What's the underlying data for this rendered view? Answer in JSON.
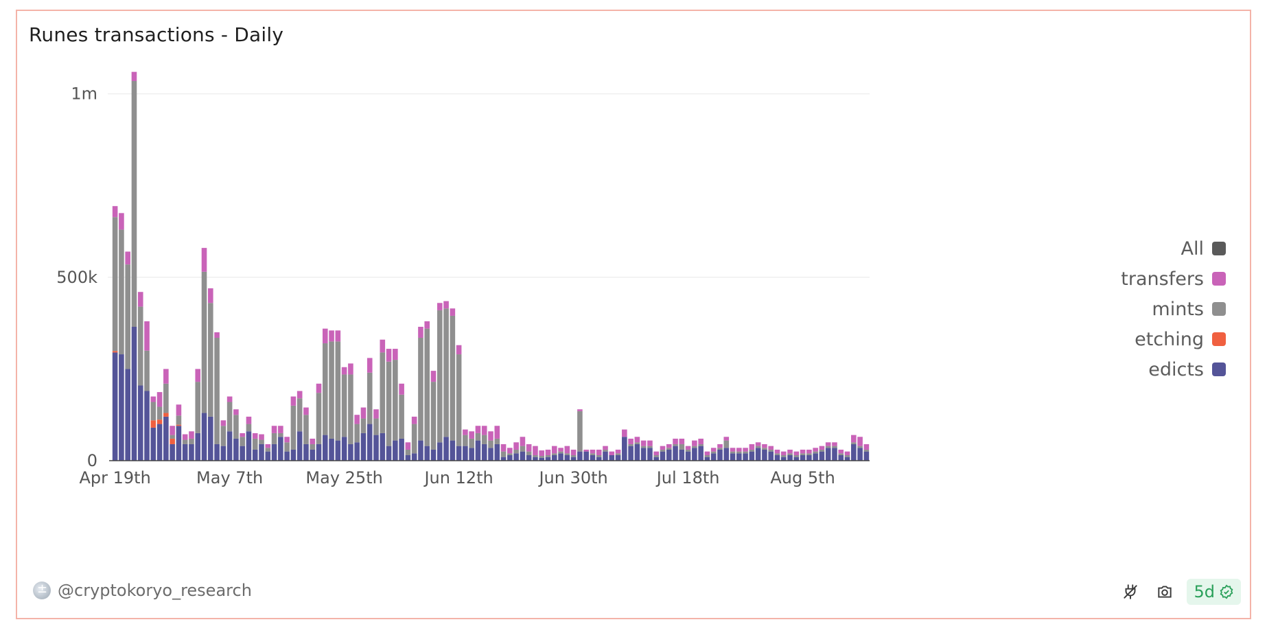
{
  "title": "Runes transactions - Daily",
  "author": "@cryptokoryo_research",
  "badge": {
    "label": "5d"
  },
  "colors": {
    "edicts": "#545498",
    "etching": "#f06040",
    "mints": "#8f8f8f",
    "transfers": "#c963b8",
    "all": "#5a5a5a"
  },
  "legend": [
    {
      "label": "All",
      "color": "#5a5a5a"
    },
    {
      "label": "transfers",
      "color": "#c963b8"
    },
    {
      "label": "mints",
      "color": "#8f8f8f"
    },
    {
      "label": "etching",
      "color": "#f06040"
    },
    {
      "label": "edicts",
      "color": "#545498"
    }
  ],
  "chart_data": {
    "type": "bar",
    "stacked": true,
    "title": "Runes transactions - Daily",
    "xlabel": "",
    "ylabel": "",
    "ylim": [
      0,
      1050000
    ],
    "yticks": [
      0,
      500000,
      1000000
    ],
    "ytick_labels": [
      "0",
      "500k",
      "1m"
    ],
    "xtick_labels": [
      "Apr 19th",
      "May 7th",
      "May 25th",
      "Jun 12th",
      "Jun 30th",
      "Jul 18th",
      "Aug 5th"
    ],
    "xtick_day_index": [
      0,
      18,
      36,
      54,
      72,
      90,
      108
    ],
    "start_date": "Apr 19th",
    "series": [
      {
        "name": "edicts",
        "values": [
          295000,
          290000,
          250000,
          365000,
          205000,
          190000,
          90000,
          100000,
          120000,
          45000,
          95000,
          45000,
          45000,
          75000,
          130000,
          120000,
          45000,
          40000,
          80000,
          60000,
          40000,
          80000,
          30000,
          45000,
          25000,
          45000,
          65000,
          25000,
          30000,
          80000,
          45000,
          30000,
          45000,
          70000,
          60000,
          55000,
          65000,
          45000,
          50000,
          75000,
          100000,
          70000,
          75000,
          40000,
          55000,
          60000,
          15000,
          20000,
          55000,
          40000,
          30000,
          50000,
          65000,
          55000,
          40000,
          40000,
          35000,
          55000,
          45000,
          35000,
          45000,
          10000,
          15000,
          20000,
          25000,
          15000,
          10000,
          8000,
          10000,
          15000,
          20000,
          15000,
          10000,
          25000,
          25000,
          15000,
          10000,
          25000,
          15000,
          15000,
          65000,
          40000,
          45000,
          35000,
          35000,
          10000,
          25000,
          30000,
          40000,
          30000,
          25000,
          35000,
          40000,
          10000,
          20000,
          30000,
          35000,
          20000,
          20000,
          20000,
          25000,
          35000,
          30000,
          25000,
          15000,
          10000,
          15000,
          10000,
          15000,
          15000,
          20000,
          25000,
          35000,
          35000,
          15000,
          10000,
          45000,
          35000,
          25000
        ]
      },
      {
        "name": "etching",
        "values": [
          4000,
          0,
          0,
          0,
          0,
          0,
          20000,
          12000,
          10000,
          15000,
          3000,
          0,
          0,
          0,
          0,
          0,
          0,
          0,
          0,
          0,
          0,
          0,
          0,
          0,
          0,
          0,
          0,
          0,
          0,
          0,
          0,
          0,
          0,
          0,
          0,
          0,
          0,
          0,
          0,
          0,
          0,
          0,
          0,
          0,
          0,
          0,
          0,
          0,
          0,
          0,
          0,
          0,
          0,
          0,
          0,
          0,
          0,
          0,
          0,
          0,
          0,
          0,
          0,
          0,
          0,
          0,
          0,
          0,
          0,
          0,
          0,
          0,
          0,
          0,
          0,
          0,
          0,
          0,
          0,
          0,
          0,
          0,
          0,
          0,
          0,
          0,
          0,
          0,
          0,
          0,
          0,
          0,
          0,
          0,
          0,
          0,
          0,
          0,
          0,
          0,
          0,
          0,
          0,
          0,
          0,
          0,
          0,
          0,
          0,
          0,
          0,
          0,
          0,
          0,
          0,
          0,
          0,
          0,
          0
        ]
      },
      {
        "name": "mints",
        "values": [
          365000,
          340000,
          285000,
          670000,
          215000,
          110000,
          50000,
          35000,
          80000,
          10000,
          25000,
          12000,
          15000,
          140000,
          385000,
          310000,
          290000,
          55000,
          80000,
          65000,
          25000,
          20000,
          30000,
          12000,
          10000,
          30000,
          10000,
          25000,
          120000,
          90000,
          80000,
          15000,
          140000,
          250000,
          265000,
          270000,
          170000,
          190000,
          50000,
          40000,
          140000,
          45000,
          220000,
          230000,
          220000,
          120000,
          15000,
          80000,
          280000,
          320000,
          185000,
          360000,
          350000,
          340000,
          250000,
          30000,
          25000,
          20000,
          25000,
          20000,
          15000,
          15000,
          5000,
          10000,
          15000,
          10000,
          5000,
          5000,
          5000,
          5000,
          5000,
          5000,
          5000,
          110000,
          0,
          5000,
          5000,
          5000,
          0,
          5000,
          0,
          5000,
          5000,
          5000,
          5000,
          5000,
          5000,
          5000,
          5000,
          15000,
          5000,
          5000,
          5000,
          5000,
          5000,
          5000,
          20000,
          5000,
          5000,
          5000,
          5000,
          5000,
          5000,
          5000,
          5000,
          5000,
          5000,
          5000,
          5000,
          5000,
          5000,
          5000,
          5000,
          5000,
          5000,
          5000,
          5000,
          5000,
          5000
        ]
      },
      {
        "name": "transfers",
        "values": [
          30000,
          45000,
          35000,
          25000,
          40000,
          80000,
          15000,
          40000,
          40000,
          25000,
          30000,
          15000,
          20000,
          35000,
          65000,
          40000,
          15000,
          15000,
          15000,
          15000,
          10000,
          20000,
          15000,
          15000,
          10000,
          20000,
          20000,
          15000,
          25000,
          20000,
          20000,
          15000,
          25000,
          40000,
          30000,
          30000,
          20000,
          30000,
          25000,
          30000,
          40000,
          25000,
          35000,
          35000,
          30000,
          30000,
          20000,
          20000,
          30000,
          20000,
          30000,
          20000,
          20000,
          20000,
          25000,
          15000,
          20000,
          20000,
          25000,
          25000,
          35000,
          20000,
          15000,
          20000,
          25000,
          20000,
          25000,
          15000,
          15000,
          20000,
          10000,
          20000,
          15000,
          5000,
          5000,
          10000,
          15000,
          10000,
          10000,
          10000,
          20000,
          15000,
          15000,
          15000,
          15000,
          10000,
          10000,
          10000,
          15000,
          15000,
          10000,
          15000,
          15000,
          10000,
          10000,
          10000,
          10000,
          10000,
          10000,
          10000,
          15000,
          10000,
          10000,
          10000,
          10000,
          10000,
          10000,
          10000,
          10000,
          10000,
          10000,
          10000,
          10000,
          10000,
          10000,
          10000,
          20000,
          25000,
          15000
        ]
      }
    ]
  }
}
